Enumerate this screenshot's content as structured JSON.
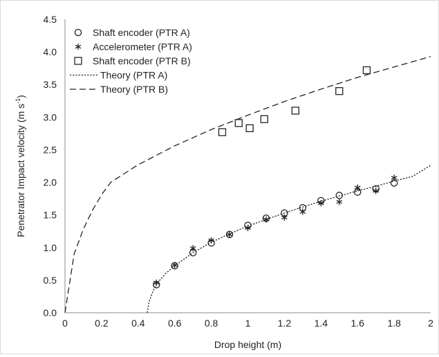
{
  "chart_data": {
    "type": "scatter",
    "xlabel": "Drop height (m)",
    "ylabel_main": "Penetrator Impact velocity (m s",
    "ylabel_sup": "-1",
    "ylabel_end": ")",
    "xlim": [
      0,
      2
    ],
    "ylim": [
      0,
      4.5
    ],
    "x_ticks": [
      0,
      0.2,
      0.4,
      0.6,
      0.8,
      1,
      1.2,
      1.4,
      1.6,
      1.8,
      2
    ],
    "x_tick_labels": [
      "0",
      "0.2",
      "0.4",
      "0.6",
      "0.8",
      "1",
      "1.2",
      "1.4",
      "1.6",
      "1.8",
      "2"
    ],
    "y_ticks": [
      0,
      0.5,
      1,
      1.5,
      2,
      2.5,
      3,
      3.5,
      4,
      4.5
    ],
    "y_tick_labels": [
      "0.0",
      "0.5",
      "1.0",
      "1.5",
      "2.0",
      "2.5",
      "3.0",
      "3.5",
      "4.0",
      "4.5"
    ],
    "grid": false,
    "legend_position": "top-left",
    "series": [
      {
        "name": "Shaft encoder (PTR A)",
        "marker": "circle",
        "color": "#222222",
        "points": [
          [
            0.5,
            0.43
          ],
          [
            0.6,
            0.72
          ],
          [
            0.7,
            0.92
          ],
          [
            0.8,
            1.07
          ],
          [
            0.9,
            1.2
          ],
          [
            1.0,
            1.34
          ],
          [
            1.1,
            1.45
          ],
          [
            1.2,
            1.53
          ],
          [
            1.3,
            1.61
          ],
          [
            1.4,
            1.72
          ],
          [
            1.5,
            1.8
          ],
          [
            1.6,
            1.85
          ],
          [
            1.7,
            1.9
          ],
          [
            1.8,
            1.99
          ]
        ]
      },
      {
        "name": "Accelerometer (PTR A)",
        "marker": "asterisk",
        "color": "#222222",
        "points": [
          [
            0.5,
            0.46
          ],
          [
            0.6,
            0.73
          ],
          [
            0.7,
            0.99
          ],
          [
            0.8,
            1.11
          ],
          [
            0.9,
            1.2
          ],
          [
            1.0,
            1.3
          ],
          [
            1.1,
            1.43
          ],
          [
            1.2,
            1.46
          ],
          [
            1.3,
            1.55
          ],
          [
            1.4,
            1.68
          ],
          [
            1.5,
            1.7
          ],
          [
            1.6,
            1.92
          ],
          [
            1.7,
            1.87
          ],
          [
            1.8,
            2.07
          ]
        ]
      },
      {
        "name": "Shaft encoder (PTR B)",
        "marker": "square",
        "color": "#222222",
        "points": [
          [
            0.86,
            2.77
          ],
          [
            0.95,
            2.91
          ],
          [
            1.01,
            2.83
          ],
          [
            1.09,
            2.97
          ],
          [
            1.26,
            3.1
          ],
          [
            1.5,
            3.4
          ],
          [
            1.65,
            3.72
          ]
        ]
      },
      {
        "name": "Theory (PTR A)",
        "marker": "line",
        "dash": "dotted",
        "color": "#222222",
        "points": [
          [
            0.45,
            0.0
          ],
          [
            0.46,
            0.17
          ],
          [
            0.48,
            0.32
          ],
          [
            0.5,
            0.44
          ],
          [
            0.55,
            0.6
          ],
          [
            0.6,
            0.72
          ],
          [
            0.7,
            0.92
          ],
          [
            0.8,
            1.08
          ],
          [
            0.9,
            1.21
          ],
          [
            1.0,
            1.33
          ],
          [
            1.1,
            1.43
          ],
          [
            1.2,
            1.53
          ],
          [
            1.3,
            1.62
          ],
          [
            1.4,
            1.71
          ],
          [
            1.5,
            1.79
          ],
          [
            1.6,
            1.87
          ],
          [
            1.7,
            1.94
          ],
          [
            1.8,
            2.02
          ],
          [
            1.9,
            2.09
          ],
          [
            2.0,
            2.26
          ]
        ]
      },
      {
        "name": "Theory (PTR B)",
        "marker": "line",
        "dash": "dashed",
        "color": "#222222",
        "points": [
          [
            0.0,
            0.0
          ],
          [
            0.05,
            0.9
          ],
          [
            0.1,
            1.28
          ],
          [
            0.15,
            1.57
          ],
          [
            0.2,
            1.81
          ],
          [
            0.25,
            2.0
          ],
          [
            0.4,
            2.27
          ],
          [
            0.6,
            2.56
          ],
          [
            0.8,
            2.81
          ],
          [
            1.0,
            3.03
          ],
          [
            1.2,
            3.24
          ],
          [
            1.4,
            3.43
          ],
          [
            1.6,
            3.61
          ],
          [
            1.8,
            3.77
          ],
          [
            2.0,
            3.93
          ]
        ]
      }
    ]
  }
}
